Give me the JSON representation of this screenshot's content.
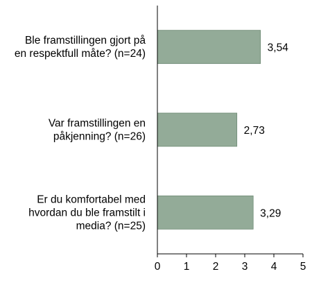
{
  "chart_data": {
    "type": "bar",
    "orientation": "horizontal",
    "categories": [
      [
        "Ble framstillingen gjort på",
        "en respektfull måte? (n=24)"
      ],
      [
        "Var framstillingen en",
        "påkjenning? (n=26)"
      ],
      [
        "Er du komfortabel med",
        "hvordan du ble framstilt i",
        "media? (n=25)"
      ]
    ],
    "values": [
      3.54,
      2.73,
      3.29
    ],
    "value_labels": [
      "3,54",
      "2,73",
      "3,29"
    ],
    "xlim": [
      0,
      5
    ],
    "x_ticks": [
      "0",
      "1",
      "2",
      "3",
      "4",
      "5"
    ],
    "bar_color": "#93ab98",
    "bar_edge_color": "#6d8a74",
    "axis_color": "#000000",
    "grid": false,
    "legend": "none"
  }
}
